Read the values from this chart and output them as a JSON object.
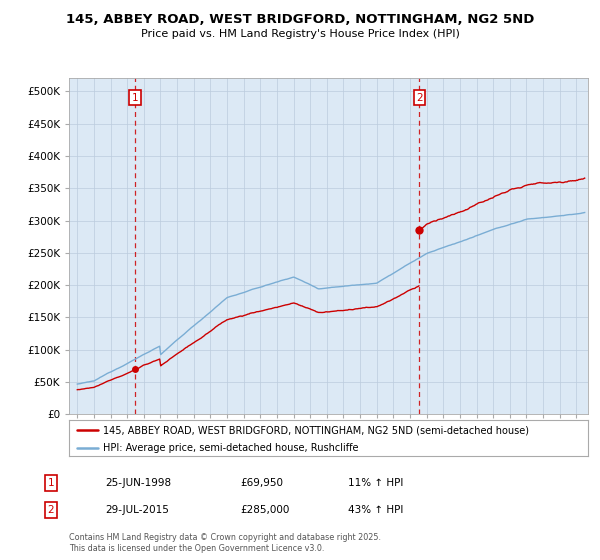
{
  "title1": "145, ABBEY ROAD, WEST BRIDGFORD, NOTTINGHAM, NG2 5ND",
  "title2": "Price paid vs. HM Land Registry's House Price Index (HPI)",
  "legend_line1": "145, ABBEY ROAD, WEST BRIDGFORD, NOTTINGHAM, NG2 5ND (semi-detached house)",
  "legend_line2": "HPI: Average price, semi-detached house, Rushcliffe",
  "annotation1_label": "1",
  "annotation1_date": "25-JUN-1998",
  "annotation1_price": "£69,950",
  "annotation1_hpi": "11% ↑ HPI",
  "annotation2_label": "2",
  "annotation2_date": "29-JUL-2015",
  "annotation2_price": "£285,000",
  "annotation2_hpi": "43% ↑ HPI",
  "footer": "Contains HM Land Registry data © Crown copyright and database right 2025.\nThis data is licensed under the Open Government Licence v3.0.",
  "sale1_x": 1998.48,
  "sale1_y": 69950,
  "sale2_x": 2015.57,
  "sale2_y": 285000,
  "price_color": "#cc0000",
  "hpi_color": "#7aadd4",
  "vline_color": "#cc0000",
  "chart_bg": "#dce9f5",
  "background_color": "#ffffff",
  "ylim": [
    0,
    520000
  ],
  "xlim_start": 1994.5,
  "xlim_end": 2025.7
}
